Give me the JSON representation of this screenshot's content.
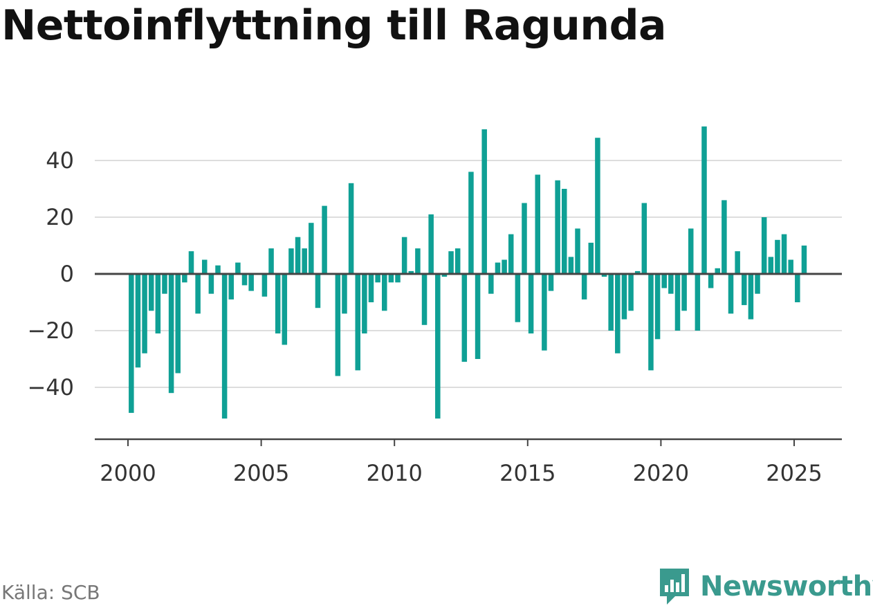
{
  "title": "Nettoinflyttning till Ragunda",
  "source": "Källa: SCB",
  "brand": {
    "name": "Newsworthy",
    "icon": "bar-chart-logo-icon",
    "color": "#3a9a8e"
  },
  "colors": {
    "bar": "#0fa095",
    "grid": "#dddddd",
    "zero_line": "#444444",
    "axis": "#444444"
  },
  "chart_data": {
    "type": "bar",
    "title": "Nettoinflyttning till Ragunda",
    "xlabel": "",
    "ylabel": "",
    "ylim": [
      -57,
      52
    ],
    "yticks": [
      -40,
      -20,
      0,
      20,
      40
    ],
    "ytick_labels": [
      "−40",
      "−20",
      "0",
      "20",
      "40"
    ],
    "xlim": [
      2000.0,
      2026.6
    ],
    "xticks": [
      2000,
      2005,
      2010,
      2015,
      2020,
      2025
    ],
    "xtick_labels": [
      "2000",
      "2005",
      "2010",
      "2015",
      "2020",
      "2025"
    ],
    "grid": true,
    "x": [
      2000.125,
      2000.375,
      2000.625,
      2000.875,
      2001.125,
      2001.375,
      2001.625,
      2001.875,
      2002.125,
      2002.375,
      2002.625,
      2002.875,
      2003.125,
      2003.375,
      2003.625,
      2003.875,
      2004.125,
      2004.375,
      2004.625,
      2004.875,
      2005.125,
      2005.375,
      2005.625,
      2005.875,
      2006.125,
      2006.375,
      2006.625,
      2006.875,
      2007.125,
      2007.375,
      2007.625,
      2007.875,
      2008.125,
      2008.375,
      2008.625,
      2008.875,
      2009.125,
      2009.375,
      2009.625,
      2009.875,
      2010.125,
      2010.375,
      2010.625,
      2010.875,
      2011.125,
      2011.375,
      2011.625,
      2011.875,
      2012.125,
      2012.375,
      2012.625,
      2012.875,
      2013.125,
      2013.375,
      2013.625,
      2013.875,
      2014.125,
      2014.375,
      2014.625,
      2014.875,
      2015.125,
      2015.375,
      2015.625,
      2015.875,
      2016.125,
      2016.375,
      2016.625,
      2016.875,
      2017.125,
      2017.375,
      2017.625,
      2017.875,
      2018.125,
      2018.375,
      2018.625,
      2018.875,
      2019.125,
      2019.375,
      2019.625,
      2019.875,
      2020.125,
      2020.375,
      2020.625,
      2020.875,
      2021.125,
      2021.375,
      2021.625,
      2021.875,
      2022.125,
      2022.375,
      2022.625,
      2022.875,
      2023.125,
      2023.375,
      2023.625,
      2023.875,
      2024.125,
      2024.375,
      2024.625,
      2024.875,
      2025.125,
      2025.375
    ],
    "values": [
      -49,
      -33,
      -28,
      -13,
      -21,
      -7,
      -42,
      -35,
      -3,
      8,
      -14,
      5,
      -7,
      3,
      -51,
      -9,
      4,
      -4,
      -6,
      0,
      -8,
      9,
      -21,
      -25,
      9,
      13,
      9,
      18,
      -12,
      24,
      0,
      -36,
      -14,
      32,
      -34,
      -21,
      -10,
      -3,
      -13,
      -3,
      -3,
      13,
      1,
      9,
      -18,
      21,
      -51,
      -1,
      8,
      9,
      -31,
      36,
      -30,
      51,
      -7,
      4,
      5,
      14,
      -17,
      25,
      -21,
      35,
      -27,
      -6,
      33,
      30,
      6,
      16,
      -9,
      11,
      48,
      -1,
      -20,
      -28,
      -16,
      -13,
      1,
      25,
      -34,
      -23,
      -5,
      -7,
      -20,
      -13,
      16,
      -20,
      52,
      -5,
      2,
      26,
      -14,
      8,
      -11,
      -16,
      -7,
      20,
      6,
      12,
      14,
      5,
      -10,
      10
    ]
  }
}
